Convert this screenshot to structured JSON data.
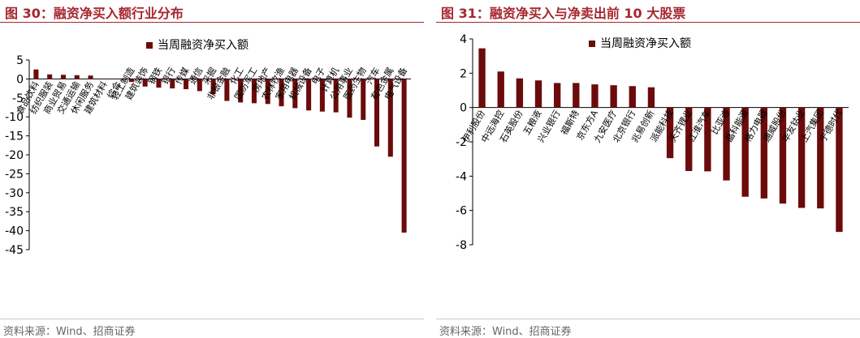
{
  "left": {
    "title": "图 30：融资净买入额行业分布",
    "source": "资料来源：Wind、招商证券",
    "chart_data": {
      "type": "bar",
      "title": "图 30：融资净买入额行业分布",
      "legend": "当周融资净买入额",
      "legend_position": "top",
      "color": "#6b0b0b",
      "ylim": [
        -45,
        5
      ],
      "yticks": [
        5,
        0,
        -5,
        -10,
        -15,
        -20,
        -25,
        -30,
        -35,
        -40,
        -45
      ],
      "categories": [
        "食品饮料",
        "纺织服装",
        "商业贸易",
        "交通运输",
        "休闲服务",
        "建筑材料",
        "综合",
        "轻工制造",
        "建筑装饰",
        "钢铁",
        "银行",
        "传媒",
        "通信",
        "采掘",
        "非银金融",
        "化工",
        "国防军工",
        "房地产",
        "农林牧渔",
        "家用电器",
        "机械设备",
        "电子",
        "计算机",
        "公用事业",
        "医药生物",
        "汽车",
        "有色金属",
        "电气设备"
      ],
      "values": [
        2.5,
        1.2,
        1.1,
        1.0,
        0.9,
        0.1,
        0.05,
        -0.8,
        -2.0,
        -2.3,
        -2.5,
        -2.7,
        -3.2,
        -4.0,
        -5.8,
        -6.2,
        -6.4,
        -6.6,
        -7.2,
        -7.7,
        -8.3,
        -8.6,
        -8.8,
        -10.2,
        -10.8,
        -17.8,
        -20.5,
        -40.5
      ]
    }
  },
  "right": {
    "title": "图 31：融资净买入与净卖出前 10 大股票",
    "source": "资料来源：Wind、招商证券",
    "chart_data": {
      "type": "bar",
      "title": "图 31：融资净买入与净卖出前 10 大股票",
      "legend": "当周融资净买入额",
      "legend_position": "top",
      "color": "#6b0b0b",
      "ylim": [
        -8,
        4
      ],
      "yticks": [
        4,
        2,
        0,
        -2,
        -4,
        -6,
        -8
      ],
      "categories": [
        "伊利股份",
        "中远海控",
        "石英股份",
        "五粮液",
        "兴业银行",
        "福斯特",
        "京东方A",
        "九安医疗",
        "北京银行",
        "兆易创新",
        "派能科技",
        "天齐锂业",
        "江淮汽车",
        "比亚迪",
        "晶科能源",
        "格力电器",
        "通威股份",
        "华友钴业",
        "上汽集团",
        "宁德时代"
      ],
      "values": [
        3.45,
        2.1,
        1.7,
        1.58,
        1.43,
        1.43,
        1.35,
        1.3,
        1.25,
        1.18,
        -2.95,
        -3.7,
        -3.72,
        -4.25,
        -5.2,
        -5.3,
        -5.6,
        -5.85,
        -5.88,
        -7.25
      ]
    }
  }
}
